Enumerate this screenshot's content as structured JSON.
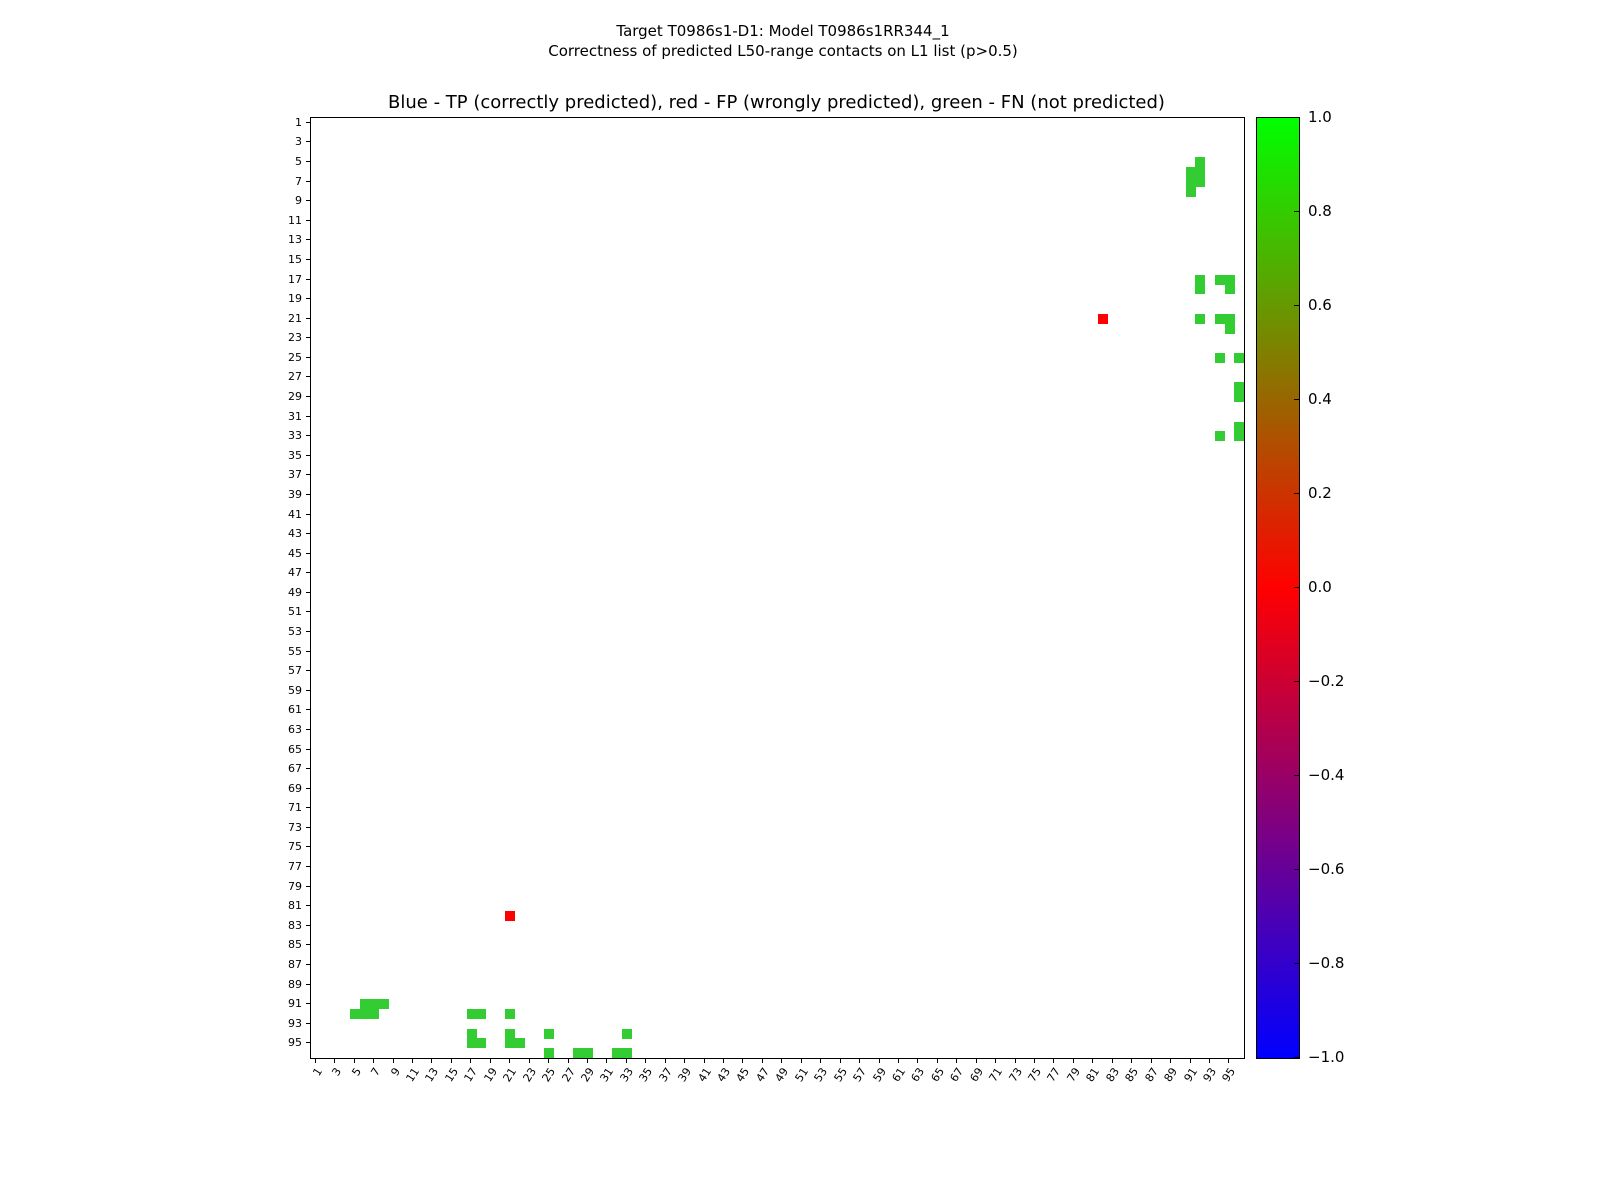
{
  "figure": {
    "suptitle_line1": "Target T0986s1-D1: Model T0986s1RR344_1",
    "suptitle_line2": "Correctness of predicted L50-range contacts on L1 list (p>0.5)",
    "axes_title": "Blue - TP (correctly predicted), red - FP (wrongly predicted), green - FN (not predicted)"
  },
  "chart_data": {
    "type": "heatmap",
    "title": "Blue - TP (correctly predicted), red - FP (wrongly predicted), green - FN (not predicted)",
    "suptitle": "Target T0986s1-D1: Model T0986s1RR344_1 — Correctness of predicted L50-range contacts on L1 list (p>0.5)",
    "x_axis": {
      "range": [
        0.5,
        96.5
      ],
      "tick_labels": [
        1,
        3,
        5,
        7,
        9,
        11,
        13,
        15,
        17,
        19,
        21,
        23,
        25,
        27,
        29,
        31,
        33,
        35,
        37,
        39,
        41,
        43,
        45,
        47,
        49,
        51,
        53,
        55,
        57,
        59,
        61,
        63,
        65,
        67,
        69,
        71,
        73,
        75,
        77,
        79,
        81,
        83,
        85,
        87,
        89,
        91,
        93,
        95
      ]
    },
    "y_axis": {
      "range": [
        0.5,
        96.5
      ],
      "inverted": true,
      "tick_labels": [
        1,
        3,
        5,
        7,
        9,
        11,
        13,
        15,
        17,
        19,
        21,
        23,
        25,
        27,
        29,
        31,
        33,
        35,
        37,
        39,
        41,
        43,
        45,
        47,
        49,
        51,
        53,
        55,
        57,
        59,
        61,
        63,
        65,
        67,
        69,
        71,
        73,
        75,
        77,
        79,
        81,
        83,
        85,
        87,
        89,
        91,
        93,
        95
      ]
    },
    "legend": {
      "TP": "blue (correctly predicted)",
      "FP": "red (wrongly predicted)",
      "FN": "green (not predicted)"
    },
    "colors": {
      "tp": "#0000ff",
      "fp": "#ff0000",
      "fn": "#33cc33"
    },
    "symmetric": true,
    "tp_contacts": [],
    "fp_contacts": [
      [
        21,
        82
      ]
    ],
    "fn_contacts": [
      [
        5,
        92
      ],
      [
        6,
        91
      ],
      [
        6,
        92
      ],
      [
        7,
        91
      ],
      [
        7,
        92
      ],
      [
        8,
        91
      ],
      [
        17,
        92
      ],
      [
        18,
        92
      ],
      [
        17,
        94
      ],
      [
        17,
        95
      ],
      [
        18,
        95
      ],
      [
        21,
        92
      ],
      [
        21,
        94
      ],
      [
        21,
        95
      ],
      [
        22,
        95
      ],
      [
        25,
        94
      ],
      [
        25,
        96
      ],
      [
        28,
        96
      ],
      [
        29,
        96
      ],
      [
        32,
        96
      ],
      [
        33,
        96
      ],
      [
        33,
        94
      ]
    ],
    "colorbar": {
      "range": [
        -1.0,
        1.0
      ],
      "gradient_top": "#00ff00",
      "gradient_middle": "#ff0000",
      "gradient_bottom": "#0000ff",
      "tick_labels": [
        "1.0",
        "0.8",
        "0.6",
        "0.4",
        "0.2",
        "0.0",
        "−0.2",
        "−0.4",
        "−0.6",
        "−0.8",
        "−1.0"
      ]
    }
  }
}
